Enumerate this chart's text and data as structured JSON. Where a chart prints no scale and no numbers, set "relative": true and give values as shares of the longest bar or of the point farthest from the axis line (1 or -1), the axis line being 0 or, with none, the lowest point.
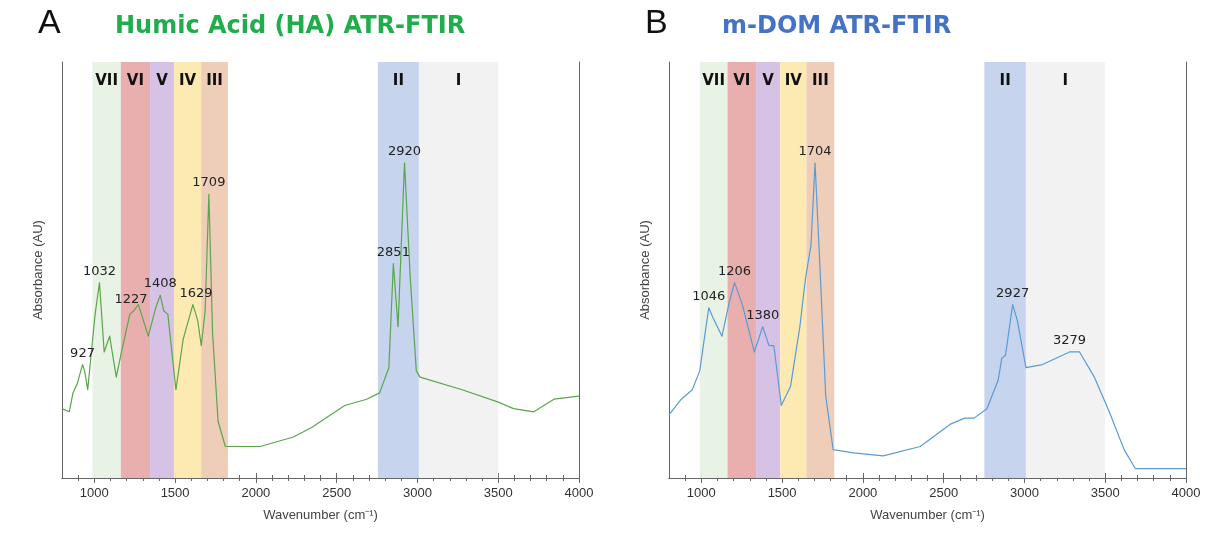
{
  "chart_data": [
    {
      "type": "line",
      "title": "Humic Acid (HA) ATR-FTIR",
      "xlabel": "Wavenumber (cm⁻¹)",
      "ylabel": "Absorbance (AU)",
      "relative": true,
      "xlim": [
        800,
        4000
      ],
      "xticks": [
        1000,
        1500,
        2000,
        2500,
        3000,
        3500,
        4000
      ],
      "grid": false,
      "tick_labels": "x",
      "series": [
        {
          "color": "#5aa64a",
          "x": [
            800,
            845,
            868,
            895,
            927,
            940,
            959,
            1005,
            1032,
            1061,
            1095,
            1136,
            1164,
            1220,
            1243,
            1273,
            1334,
            1380,
            1408,
            1430,
            1455,
            1505,
            1550,
            1610,
            1640,
            1662,
            1686,
            1709,
            1732,
            1766,
            1811,
            2027,
            2232,
            2345,
            2550,
            2686,
            2766,
            2823,
            2851,
            2880,
            2920,
            2955,
            2993,
            3016,
            3277,
            3505,
            3595,
            3720,
            3845,
            4000
          ],
          "values": [
            0.22,
            0.21,
            0.27,
            0.3,
            0.36,
            0.34,
            0.28,
            0.52,
            0.62,
            0.4,
            0.45,
            0.32,
            0.39,
            0.52,
            0.53,
            0.55,
            0.45,
            0.54,
            0.58,
            0.53,
            0.52,
            0.28,
            0.44,
            0.55,
            0.5,
            0.42,
            0.53,
            0.9,
            0.46,
            0.18,
            0.1,
            0.1,
            0.13,
            0.16,
            0.23,
            0.25,
            0.27,
            0.35,
            0.68,
            0.48,
            1.0,
            0.64,
            0.34,
            0.32,
            0.28,
            0.24,
            0.22,
            0.21,
            0.25,
            0.26
          ]
        }
      ],
      "bands": [
        {
          "axis": "x",
          "from": 988,
          "to": 1164,
          "label": "VII",
          "color": "#e8f2e4"
        },
        {
          "axis": "x",
          "from": 1164,
          "to": 1345,
          "label": "VI",
          "color": "#e8aaaa"
        },
        {
          "axis": "x",
          "from": 1345,
          "to": 1493,
          "label": "V",
          "color": "#d4bfe4"
        },
        {
          "axis": "x",
          "from": 1493,
          "to": 1661,
          "label": "IV",
          "color": "#fde8ae"
        },
        {
          "axis": "x",
          "from": 1661,
          "to": 1827,
          "label": "III",
          "color": "#eecbb5"
        },
        {
          "axis": "x",
          "from": 2755,
          "to": 3009,
          "label": "II",
          "color": "#c4d2ec"
        },
        {
          "axis": "x",
          "from": 3009,
          "to": 3500,
          "label": "I",
          "color": "#f1f1f1"
        }
      ],
      "annotations": [
        "A",
        {
          "text": "927",
          "x": 927,
          "y": 0.36
        },
        {
          "text": "1032",
          "x": 1032,
          "y": 0.62
        },
        {
          "text": "1227",
          "x": 1227,
          "y": 0.53
        },
        {
          "text": "1408",
          "x": 1408,
          "y": 0.58
        },
        {
          "text": "1629",
          "x": 1629,
          "y": 0.55
        },
        {
          "text": "1709",
          "x": 1709,
          "y": 0.9
        },
        {
          "text": "2851",
          "x": 2851,
          "y": 0.68
        },
        {
          "text": "2920",
          "x": 2920,
          "y": 1.0
        }
      ]
    },
    {
      "type": "line",
      "title": "m-DOM ATR-FTIR",
      "xlabel": "Wavenumber (cm⁻¹)",
      "ylabel": "Absorbance (AU)",
      "relative": true,
      "xlim": [
        800,
        4000
      ],
      "xticks": [
        1000,
        1500,
        2000,
        2500,
        3000,
        3500,
        4000
      ],
      "grid": false,
      "tick_labels": "x",
      "series": [
        {
          "color": "#5b9bd5",
          "x": [
            800,
            876,
            944,
            990,
            1046,
            1071,
            1128,
            1174,
            1206,
            1254,
            1328,
            1380,
            1419,
            1449,
            1495,
            1552,
            1610,
            1644,
            1679,
            1704,
            1736,
            1770,
            1816,
            1942,
            2126,
            2355,
            2539,
            2630,
            2688,
            2768,
            2837,
            2860,
            2883,
            2927,
            2956,
            3009,
            3112,
            3279,
            3341,
            3433,
            3525,
            3617,
            3686,
            3846,
            4000
          ],
          "values": [
            0.2,
            0.25,
            0.28,
            0.34,
            0.54,
            0.51,
            0.45,
            0.56,
            0.62,
            0.55,
            0.4,
            0.48,
            0.42,
            0.42,
            0.23,
            0.29,
            0.48,
            0.63,
            0.74,
            1.0,
            0.65,
            0.26,
            0.09,
            0.08,
            0.07,
            0.1,
            0.17,
            0.19,
            0.19,
            0.22,
            0.31,
            0.38,
            0.39,
            0.55,
            0.5,
            0.35,
            0.36,
            0.4,
            0.4,
            0.32,
            0.21,
            0.09,
            0.03,
            0.03,
            0.03
          ]
        }
      ],
      "bands": [
        {
          "axis": "x",
          "from": 990,
          "to": 1162,
          "label": "VII",
          "color": "#e8f2e4"
        },
        {
          "axis": "x",
          "from": 1162,
          "to": 1339,
          "label": "VI",
          "color": "#e8aaaa"
        },
        {
          "axis": "x",
          "from": 1339,
          "to": 1488,
          "label": "V",
          "color": "#d4bfe4"
        },
        {
          "axis": "x",
          "from": 1488,
          "to": 1651,
          "label": "IV",
          "color": "#fde8ae"
        },
        {
          "axis": "x",
          "from": 1651,
          "to": 1823,
          "label": "III",
          "color": "#eecbb5"
        },
        {
          "axis": "x",
          "from": 2752,
          "to": 3009,
          "label": "II",
          "color": "#c4d2ec"
        },
        {
          "axis": "x",
          "from": 3009,
          "to": 3498,
          "label": "I",
          "color": "#f1f1f1"
        }
      ],
      "annotations": [
        "B",
        {
          "text": "1046",
          "x": 1046,
          "y": 0.54
        },
        {
          "text": "1206",
          "x": 1206,
          "y": 0.62
        },
        {
          "text": "1380",
          "x": 1380,
          "y": 0.48
        },
        {
          "text": "1704",
          "x": 1704,
          "y": 1.0
        },
        {
          "text": "2927",
          "x": 2927,
          "y": 0.55
        },
        {
          "text": "3279",
          "x": 3279,
          "y": 0.4
        }
      ]
    }
  ]
}
